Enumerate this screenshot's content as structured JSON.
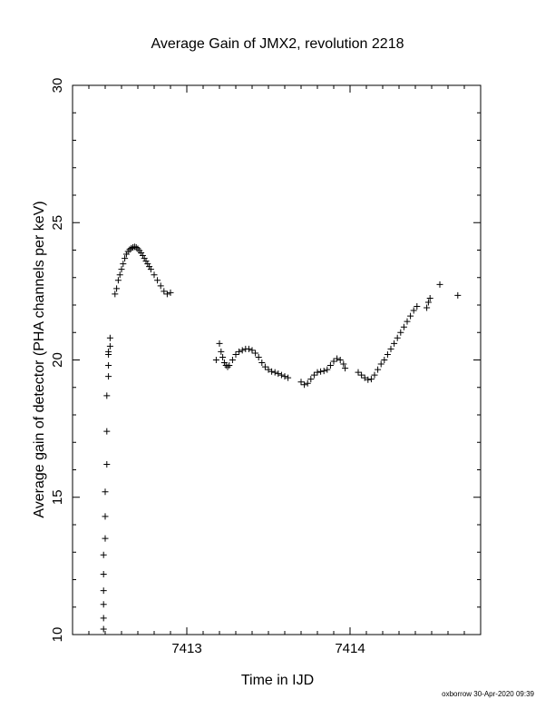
{
  "chart_data": {
    "type": "scatter",
    "title": "Average Gain of JMX2, revolution 2218",
    "xlabel": "Time in IJD",
    "ylabel": "Average gain of detector (PHA channels per keV)",
    "xlim": [
      7412.3,
      7414.8
    ],
    "ylim": [
      10,
      30
    ],
    "x_ticks": [
      7413,
      7414
    ],
    "y_ticks": [
      10,
      15,
      20,
      25,
      30
    ],
    "grid": false,
    "marker": "plus",
    "footer": "oxborrow 30-Apr-2020 09:39",
    "points": [
      [
        7412.49,
        10.2
      ],
      [
        7412.49,
        10.6
      ],
      [
        7412.49,
        11.1
      ],
      [
        7412.49,
        11.6
      ],
      [
        7412.49,
        12.2
      ],
      [
        7412.49,
        12.9
      ],
      [
        7412.5,
        13.5
      ],
      [
        7412.5,
        14.3
      ],
      [
        7412.5,
        15.2
      ],
      [
        7412.51,
        16.2
      ],
      [
        7412.51,
        17.4
      ],
      [
        7412.51,
        18.7
      ],
      [
        7412.52,
        19.4
      ],
      [
        7412.52,
        19.8
      ],
      [
        7412.52,
        20.2
      ],
      [
        7412.52,
        20.3
      ],
      [
        7412.53,
        20.5
      ],
      [
        7412.53,
        20.8
      ],
      [
        7412.56,
        22.4
      ],
      [
        7412.57,
        22.6
      ],
      [
        7412.58,
        22.9
      ],
      [
        7412.59,
        23.1
      ],
      [
        7412.6,
        23.3
      ],
      [
        7412.61,
        23.5
      ],
      [
        7412.62,
        23.7
      ],
      [
        7412.63,
        23.85
      ],
      [
        7412.64,
        23.95
      ],
      [
        7412.65,
        24.02
      ],
      [
        7412.66,
        24.07
      ],
      [
        7412.67,
        24.1
      ],
      [
        7412.68,
        24.12
      ],
      [
        7412.69,
        24.1
      ],
      [
        7412.7,
        24.05
      ],
      [
        7412.71,
        23.98
      ],
      [
        7412.72,
        23.9
      ],
      [
        7412.73,
        23.8
      ],
      [
        7412.74,
        23.7
      ],
      [
        7412.75,
        23.6
      ],
      [
        7412.76,
        23.5
      ],
      [
        7412.77,
        23.4
      ],
      [
        7412.78,
        23.3
      ],
      [
        7412.8,
        23.1
      ],
      [
        7412.82,
        22.9
      ],
      [
        7412.84,
        22.7
      ],
      [
        7412.86,
        22.5
      ],
      [
        7412.88,
        22.4
      ],
      [
        7412.9,
        22.45
      ],
      [
        7413.18,
        20.0
      ],
      [
        7413.2,
        20.6
      ],
      [
        7413.21,
        20.3
      ],
      [
        7413.22,
        20.1
      ],
      [
        7413.23,
        19.9
      ],
      [
        7413.24,
        19.8
      ],
      [
        7413.25,
        19.75
      ],
      [
        7413.26,
        19.8
      ],
      [
        7413.28,
        20.0
      ],
      [
        7413.3,
        20.2
      ],
      [
        7413.32,
        20.3
      ],
      [
        7413.34,
        20.35
      ],
      [
        7413.36,
        20.4
      ],
      [
        7413.38,
        20.4
      ],
      [
        7413.4,
        20.35
      ],
      [
        7413.42,
        20.25
      ],
      [
        7413.44,
        20.1
      ],
      [
        7413.46,
        19.9
      ],
      [
        7413.48,
        19.75
      ],
      [
        7413.5,
        19.65
      ],
      [
        7413.52,
        19.58
      ],
      [
        7413.54,
        19.55
      ],
      [
        7413.56,
        19.5
      ],
      [
        7413.58,
        19.45
      ],
      [
        7413.6,
        19.4
      ],
      [
        7413.62,
        19.35
      ],
      [
        7413.7,
        19.2
      ],
      [
        7413.72,
        19.1
      ],
      [
        7413.74,
        19.15
      ],
      [
        7413.76,
        19.3
      ],
      [
        7413.78,
        19.45
      ],
      [
        7413.8,
        19.55
      ],
      [
        7413.82,
        19.58
      ],
      [
        7413.84,
        19.6
      ],
      [
        7413.86,
        19.65
      ],
      [
        7413.88,
        19.8
      ],
      [
        7413.9,
        19.95
      ],
      [
        7413.92,
        20.05
      ],
      [
        7413.94,
        20.0
      ],
      [
        7413.96,
        19.85
      ],
      [
        7413.97,
        19.7
      ],
      [
        7414.05,
        19.55
      ],
      [
        7414.07,
        19.45
      ],
      [
        7414.09,
        19.35
      ],
      [
        7414.11,
        19.28
      ],
      [
        7414.13,
        19.3
      ],
      [
        7414.15,
        19.45
      ],
      [
        7414.17,
        19.65
      ],
      [
        7414.19,
        19.85
      ],
      [
        7414.21,
        20.0
      ],
      [
        7414.23,
        20.2
      ],
      [
        7414.25,
        20.4
      ],
      [
        7414.27,
        20.6
      ],
      [
        7414.29,
        20.8
      ],
      [
        7414.31,
        21.0
      ],
      [
        7414.33,
        21.2
      ],
      [
        7414.35,
        21.4
      ],
      [
        7414.37,
        21.6
      ],
      [
        7414.39,
        21.8
      ],
      [
        7414.41,
        21.95
      ],
      [
        7414.47,
        21.9
      ],
      [
        7414.48,
        22.1
      ],
      [
        7414.49,
        22.25
      ],
      [
        7414.55,
        22.75
      ],
      [
        7414.66,
        22.35
      ]
    ]
  }
}
